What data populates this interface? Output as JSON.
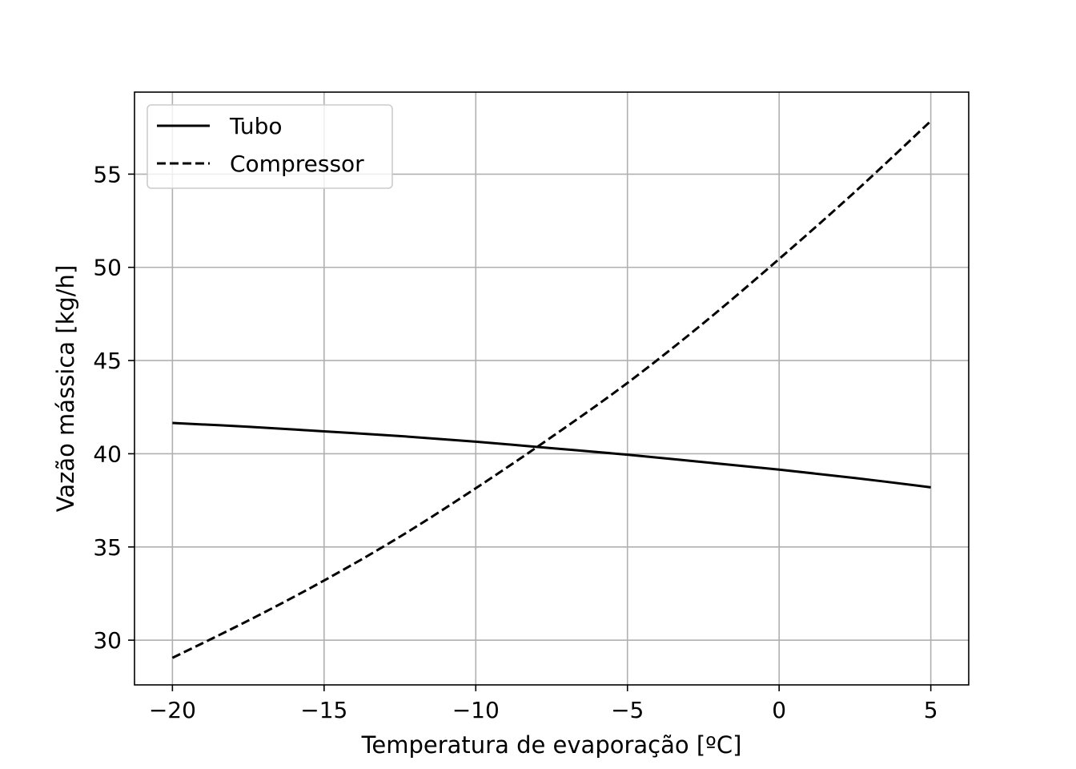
{
  "chart_data": {
    "type": "line",
    "title": "",
    "xlabel": "Temperatura de evaporação [ºC]",
    "ylabel": "Vazão mássica [kg/h]",
    "xlim": [
      -21.25,
      6.25
    ],
    "ylim": [
      27.6,
      59.4
    ],
    "xticks": [
      -20,
      -15,
      -10,
      -5,
      0,
      5
    ],
    "xtick_labels": [
      "−20",
      "−15",
      "−10",
      "−5",
      "0",
      "5"
    ],
    "yticks": [
      30,
      35,
      40,
      45,
      50,
      55
    ],
    "ytick_labels": [
      "30",
      "35",
      "40",
      "45",
      "50",
      "55"
    ],
    "grid": true,
    "legend_position": "upper-left",
    "colors": {
      "line": "#000000",
      "grid": "#b0b0b0",
      "frame": "#000000"
    },
    "series": [
      {
        "name": "Tubo",
        "style": "solid",
        "x": [
          -20,
          -17.5,
          -15,
          -12.5,
          -10,
          -7.5,
          -5,
          -2.5,
          0,
          2.5,
          5
        ],
        "values": [
          41.65,
          41.45,
          41.2,
          40.95,
          40.65,
          40.3,
          39.95,
          39.55,
          39.15,
          38.7,
          38.2
        ]
      },
      {
        "name": "Compressor",
        "style": "dashed",
        "x": [
          -20,
          -17.5,
          -15,
          -12.5,
          -10,
          -7.5,
          -5,
          -2.5,
          0,
          2.5,
          5
        ],
        "values": [
          29.05,
          31.05,
          33.2,
          35.55,
          38.15,
          40.9,
          43.8,
          47.0,
          50.45,
          54.05,
          57.85
        ]
      }
    ]
  }
}
